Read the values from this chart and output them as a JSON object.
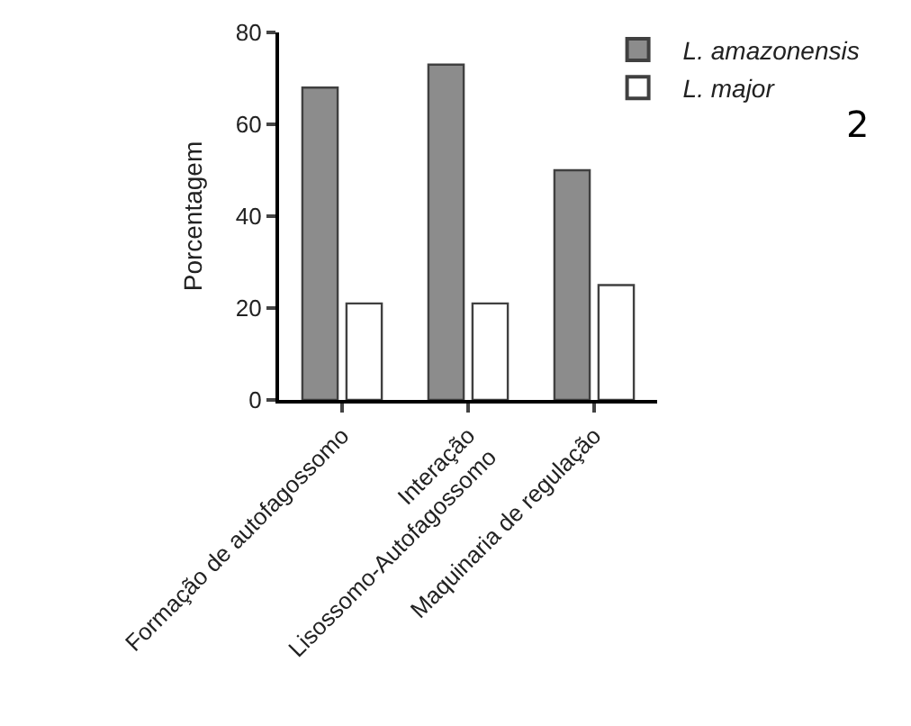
{
  "chart_data": {
    "type": "bar",
    "ylabel": "Porcentagem",
    "categories": [
      "Formação de autofagossomo",
      "Interação\nLisossomo-Autofagossomo",
      "Maquinaria de regulação"
    ],
    "series": [
      {
        "name": "L. amazonensis",
        "color": "#8c8c8c",
        "values": [
          68,
          73,
          50
        ]
      },
      {
        "name": "L. major",
        "color": "#ffffff",
        "values": [
          21,
          21,
          25
        ]
      }
    ],
    "ylim": [
      0,
      80
    ],
    "yticks": [
      0,
      20,
      40,
      60,
      80
    ],
    "legend": "top right",
    "annotations": [
      "2"
    ]
  }
}
